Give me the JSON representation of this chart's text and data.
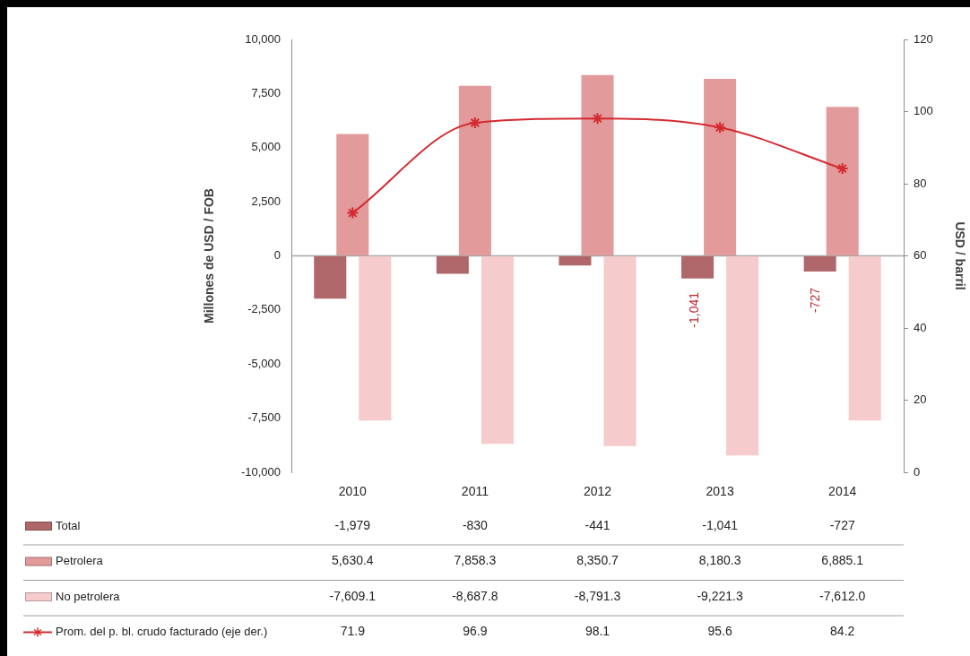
{
  "chart_data": {
    "type": "bar",
    "categories": [
      "2010",
      "2011",
      "2012",
      "2013",
      "2014"
    ],
    "series": [
      {
        "name": "Total",
        "color": "#b0676a",
        "values": [
          -1979,
          -830,
          -441,
          -1041,
          -727
        ],
        "value_labels": [
          "-1,979",
          "-830",
          "-441",
          "-1,041",
          "-727"
        ]
      },
      {
        "name": "Petrolera",
        "color": "#e29a9b",
        "values": [
          5630.4,
          7858.3,
          8350.7,
          8180.3,
          6885.1
        ],
        "value_labels": [
          "5,630.4",
          "7,858.3",
          "8,350.7",
          "8,180.3",
          "6,885.1"
        ]
      },
      {
        "name": "No petrolera",
        "color": "#f5cbcb",
        "values": [
          -7609.1,
          -8687.8,
          -8791.3,
          -9221.3,
          -7612.0
        ],
        "value_labels": [
          "-7,609.1",
          "-8,687.8",
          "-8,791.3",
          "-9,221.3",
          "-7,612.0"
        ]
      },
      {
        "name": "Prom. del p. bl. crudo facturado (eje der.)",
        "type": "line",
        "axis": "y2",
        "color": "#d42a30",
        "values": [
          71.9,
          96.9,
          98.1,
          95.6,
          84.2
        ],
        "value_labels": [
          "71.9",
          "96.9",
          "98.1",
          "95.6",
          "84.2"
        ]
      }
    ],
    "ylabel": "Millones de USD / FOB",
    "y2label": "USD / barril",
    "ylim": [
      -10000,
      10000
    ],
    "yticks": [
      {
        "value": -10000,
        "label": "-10,000"
      },
      {
        "value": -7500,
        "label": "-7,500"
      },
      {
        "value": -5000,
        "label": "-5,000"
      },
      {
        "value": -2500,
        "label": "-2,500"
      },
      0,
      {
        "value": 2500,
        "label": "2,500"
      },
      {
        "value": 5000,
        "label": "5,000"
      },
      {
        "value": 7500,
        "label": "7,500"
      },
      {
        "value": 10000,
        "label": "10,000"
      }
    ],
    "y2lim": [
      0,
      120
    ],
    "y2ticks": [
      0,
      20,
      40,
      60,
      80,
      100,
      120
    ],
    "annotations": [
      "-1,041",
      "-727"
    ],
    "marker": "cross",
    "legend": "bottom"
  }
}
